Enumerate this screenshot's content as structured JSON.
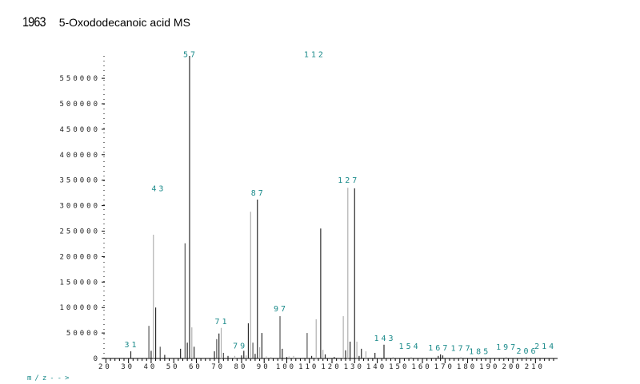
{
  "header": {
    "id": "1963",
    "title": "5-Oxododecanoic acid MS"
  },
  "chart_data": {
    "type": "bar",
    "title": "5-Oxododecanoic acid MS",
    "xlabel": "m/z-->",
    "ylabel": "",
    "xlim": [
      20,
      218
    ],
    "ylim": [
      0,
      595000
    ],
    "x_ticks": [
      20,
      30,
      40,
      50,
      60,
      70,
      80,
      90,
      100,
      110,
      120,
      130,
      140,
      150,
      160,
      170,
      180,
      190,
      200,
      210
    ],
    "y_ticks": [
      0,
      50000,
      100000,
      150000,
      200000,
      250000,
      300000,
      350000,
      400000,
      450000,
      500000,
      550000
    ],
    "peaks": [
      [
        31,
        14000,
        "d"
      ],
      [
        39,
        64000,
        "m"
      ],
      [
        40,
        15000,
        "d"
      ],
      [
        41,
        243000,
        "g"
      ],
      [
        42,
        100000,
        "d"
      ],
      [
        44,
        23000,
        "m"
      ],
      [
        46,
        7000,
        "d"
      ],
      [
        53,
        19000,
        "d"
      ],
      [
        55,
        226000,
        "m"
      ],
      [
        56,
        31000,
        "d"
      ],
      [
        57,
        594000,
        "d"
      ],
      [
        58,
        61000,
        "g"
      ],
      [
        59,
        23000,
        "d"
      ],
      [
        68,
        14000,
        "d"
      ],
      [
        69,
        38000,
        "m"
      ],
      [
        70,
        49000,
        "d"
      ],
      [
        71,
        60000,
        "g"
      ],
      [
        72,
        11000,
        "m"
      ],
      [
        74,
        5000,
        "d"
      ],
      [
        77,
        5000,
        "g"
      ],
      [
        80,
        6000,
        "d"
      ],
      [
        81,
        15000,
        "d"
      ],
      [
        82,
        6000,
        "g"
      ],
      [
        83,
        69000,
        "d"
      ],
      [
        84,
        288000,
        "g"
      ],
      [
        85,
        31000,
        "m"
      ],
      [
        86,
        9000,
        "d"
      ],
      [
        87,
        312000,
        "d"
      ],
      [
        88,
        22000,
        "g"
      ],
      [
        89,
        50000,
        "d"
      ],
      [
        91,
        4000,
        "g"
      ],
      [
        93,
        3000,
        "g"
      ],
      [
        97,
        83000,
        "m"
      ],
      [
        98,
        19000,
        "d"
      ],
      [
        100,
        3000,
        "d"
      ],
      [
        101,
        4000,
        "g"
      ],
      [
        103,
        5000,
        "g"
      ],
      [
        109,
        50000,
        "m"
      ],
      [
        111,
        5000,
        "d"
      ],
      [
        113,
        77000,
        "g"
      ],
      [
        115,
        255000,
        "d"
      ],
      [
        116,
        17000,
        "g"
      ],
      [
        117,
        8000,
        "d"
      ],
      [
        121,
        3000,
        "d"
      ],
      [
        125,
        83000,
        "g"
      ],
      [
        126,
        16000,
        "d"
      ],
      [
        127,
        335000,
        "g"
      ],
      [
        128,
        33000,
        "d"
      ],
      [
        130,
        334000,
        "d"
      ],
      [
        131,
        33000,
        "g"
      ],
      [
        132,
        5000,
        "d"
      ],
      [
        133,
        19000,
        "d"
      ],
      [
        135,
        14000,
        "g"
      ],
      [
        139,
        11000,
        "d"
      ],
      [
        143,
        27000,
        "d"
      ],
      [
        147,
        3000,
        "g"
      ],
      [
        155,
        3000,
        "g"
      ],
      [
        167,
        5000,
        "d"
      ],
      [
        168,
        8000,
        "d"
      ],
      [
        169,
        6000,
        "d"
      ],
      [
        177,
        3000,
        "g"
      ],
      [
        197,
        3000,
        "g"
      ],
      [
        206,
        3000,
        "g"
      ]
    ],
    "labels": [
      {
        "text": "31",
        "mz": 31,
        "at": 20000
      },
      {
        "text": "43",
        "mz": 43,
        "at": 327000
      },
      {
        "text": "57",
        "mz": 57,
        "at": 590000
      },
      {
        "text": "71",
        "mz": 71,
        "at": 66000
      },
      {
        "text": "79",
        "mz": 79,
        "at": 18000
      },
      {
        "text": "87",
        "mz": 87,
        "at": 318000
      },
      {
        "text": "97",
        "mz": 97,
        "at": 91000
      },
      {
        "text": "112",
        "mz": 112,
        "at": 590000
      },
      {
        "text": "127",
        "mz": 127,
        "at": 343000
      },
      {
        "text": "143",
        "mz": 143,
        "at": 33000
      },
      {
        "text": "154",
        "mz": 154,
        "at": 17000
      },
      {
        "text": "167",
        "mz": 167,
        "at": 14000
      },
      {
        "text": "177",
        "mz": 177,
        "at": 13000
      },
      {
        "text": "185",
        "mz": 185,
        "at": 7000
      },
      {
        "text": "197",
        "mz": 197,
        "at": 16000
      },
      {
        "text": "206",
        "mz": 206,
        "at": 8000
      },
      {
        "text": "214",
        "mz": 214,
        "at": 17000
      }
    ],
    "colors": {
      "d": "#2a2a2a",
      "m": "#555555",
      "g": "#b0b0b0",
      "label": "#1a8a8a"
    }
  }
}
